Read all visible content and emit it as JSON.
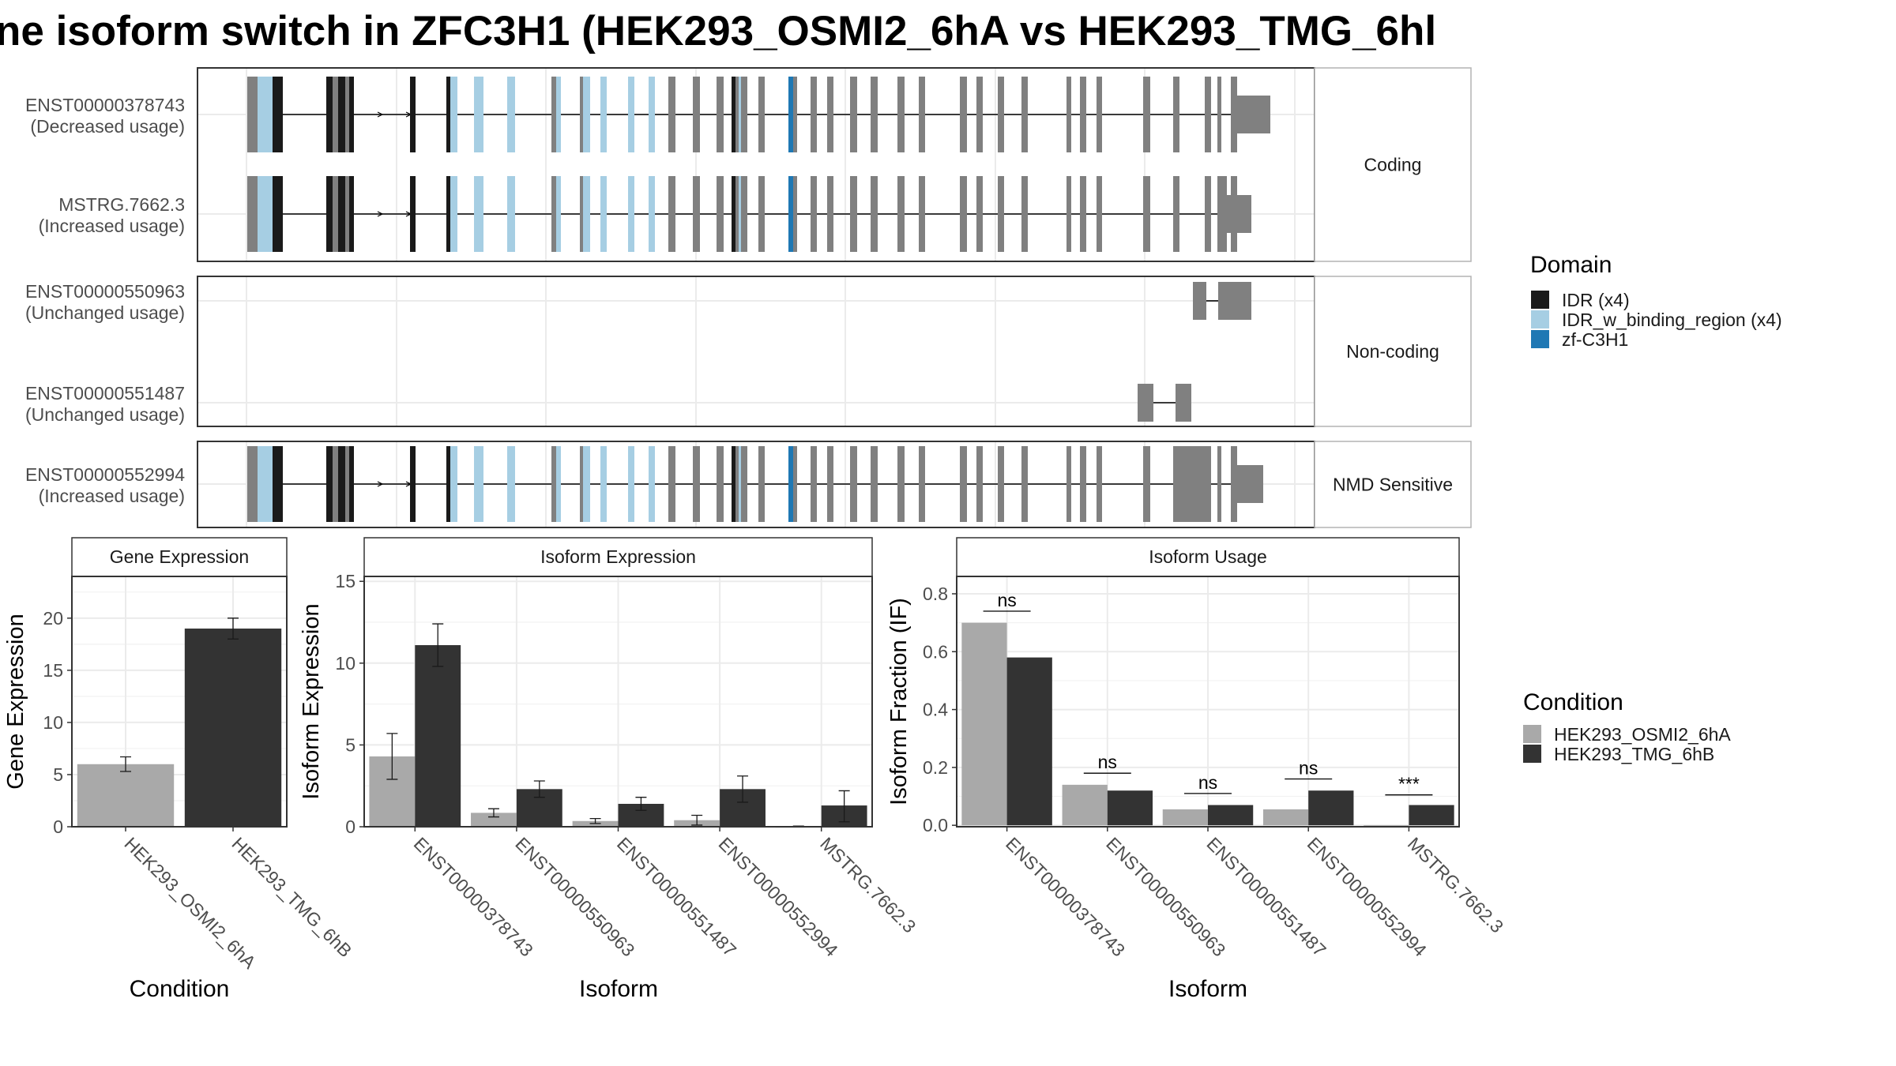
{
  "title": "ne isoform switch in ZFC3H1 (HEK293_OSMI2_6hA vs HEK293_TMG_6hl",
  "colors": {
    "cond_a": "#a9a9a9",
    "cond_b": "#333333",
    "exon": "#808080",
    "idr": "#1a1a1a",
    "idr_binding": "#a6cee3",
    "zf": "#1f78b4",
    "panel_border": "#333333",
    "strip_border": "#b3b3b3",
    "grid": "#ebebeb"
  },
  "structure": {
    "panels": [
      {
        "label": "Coding",
        "isoforms": [
          {
            "name": "ENST00000378743",
            "usage": "(Decreased usage)",
            "model": "full",
            "tail": "long"
          },
          {
            "name": "MSTRG.7662.3",
            "usage": "(Increased usage)",
            "model": "full",
            "tail": "short"
          }
        ]
      },
      {
        "label": "Non-coding",
        "isoforms": [
          {
            "name": "ENST00000550963",
            "usage": "(Unchanged usage)",
            "model": "nc1"
          },
          {
            "name": "ENST00000551487",
            "usage": "(Unchanged usage)",
            "model": "nc2"
          }
        ]
      },
      {
        "label": "NMD Sensitive",
        "isoforms": [
          {
            "name": "ENST00000552994",
            "usage": "(Increased usage)",
            "model": "full",
            "tail": "nmd"
          }
        ]
      }
    ]
  },
  "domain_legend": {
    "title": "Domain",
    "items": [
      {
        "label": "IDR (x4)",
        "color": "#1a1a1a"
      },
      {
        "label": "IDR_w_binding_region (x4)",
        "color": "#a6cee3"
      },
      {
        "label": "zf-C3H1",
        "color": "#1f78b4"
      }
    ]
  },
  "condition_legend": {
    "title": "Condition",
    "items": [
      {
        "label": "HEK293_OSMI2_6hA",
        "color": "#a9a9a9"
      },
      {
        "label": "HEK293_TMG_6hB",
        "color": "#333333"
      }
    ]
  },
  "chart_data": [
    {
      "type": "bar",
      "title": "Gene Expression",
      "xlabel": "Condition",
      "ylabel": "Gene Expression",
      "ylim": [
        0,
        24
      ],
      "yticks": [
        0,
        5,
        10,
        15,
        20
      ],
      "ytick_labels": [
        "0",
        "5",
        "10",
        "15",
        "20"
      ],
      "categories": [
        "HEK293_OSMI2_6hA",
        "HEK293_TMG_6hB"
      ],
      "values": [
        6.0,
        19.0
      ],
      "error": [
        [
          5.3,
          6.7
        ],
        [
          18.0,
          20.0
        ]
      ]
    },
    {
      "type": "bar",
      "title": "Isoform Expression",
      "xlabel": "Isoform",
      "ylabel": "Isoform Expression",
      "ylim": [
        0,
        15.3
      ],
      "yticks": [
        0,
        5,
        10,
        15
      ],
      "ytick_labels": [
        "0",
        "5",
        "10",
        "15"
      ],
      "categories": [
        "ENST00000378743",
        "ENST00000550963",
        "ENST00000551487",
        "ENST00000552994",
        "MSTRG.7662.3"
      ],
      "series": [
        {
          "name": "HEK293_OSMI2_6hA",
          "values": [
            4.3,
            0.85,
            0.35,
            0.4,
            0.02
          ],
          "error": [
            [
              2.9,
              5.7
            ],
            [
              0.6,
              1.1
            ],
            [
              0.2,
              0.5
            ],
            [
              0.1,
              0.7
            ],
            [
              0.0,
              0.04
            ]
          ]
        },
        {
          "name": "HEK293_TMG_6hB",
          "values": [
            11.1,
            2.3,
            1.4,
            2.3,
            1.3
          ],
          "error": [
            [
              9.8,
              12.4
            ],
            [
              1.8,
              2.8
            ],
            [
              1.0,
              1.8
            ],
            [
              1.5,
              3.1
            ],
            [
              0.3,
              2.2
            ]
          ]
        }
      ]
    },
    {
      "type": "bar",
      "title": "Isoform Usage",
      "xlabel": "Isoform",
      "ylabel": "Isoform Fraction (IF)",
      "ylim": [
        -0.005,
        0.86
      ],
      "yticks": [
        0,
        0.2,
        0.4,
        0.6,
        0.8
      ],
      "ytick_labels": [
        "0.0",
        "0.2",
        "0.4",
        "0.6",
        "0.8"
      ],
      "categories": [
        "ENST00000378743",
        "ENST00000550963",
        "ENST00000551487",
        "ENST00000552994",
        "MSTRG.7662.3"
      ],
      "series": [
        {
          "name": "HEK293_OSMI2_6hA",
          "values": [
            0.7,
            0.14,
            0.055,
            0.055,
            0.0
          ]
        },
        {
          "name": "HEK293_TMG_6hB",
          "values": [
            0.58,
            0.12,
            0.07,
            0.12,
            0.07
          ]
        }
      ],
      "significance": [
        {
          "label": "ns",
          "y": 0.74
        },
        {
          "label": "ns",
          "y": 0.18
        },
        {
          "label": "ns",
          "y": 0.11
        },
        {
          "label": "ns",
          "y": 0.16
        },
        {
          "label": "***",
          "y": 0.105
        }
      ]
    }
  ]
}
